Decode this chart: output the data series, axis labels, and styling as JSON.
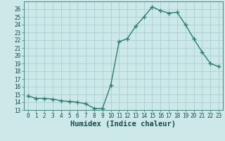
{
  "x": [
    0,
    1,
    2,
    3,
    4,
    5,
    6,
    7,
    8,
    9,
    10,
    11,
    12,
    13,
    14,
    15,
    16,
    17,
    18,
    19,
    20,
    21,
    22,
    23
  ],
  "y": [
    14.8,
    14.5,
    14.5,
    14.4,
    14.2,
    14.1,
    14.0,
    13.8,
    13.2,
    13.2,
    16.2,
    21.8,
    22.2,
    23.8,
    25.0,
    26.3,
    25.8,
    25.5,
    25.6,
    24.0,
    22.2,
    20.5,
    19.0,
    18.6
  ],
  "xlabel": "Humidex (Indice chaleur)",
  "xlim": [
    -0.5,
    23.5
  ],
  "ylim": [
    13,
    27
  ],
  "yticks": [
    13,
    14,
    15,
    16,
    17,
    18,
    19,
    20,
    21,
    22,
    23,
    24,
    25,
    26
  ],
  "xticks": [
    0,
    1,
    2,
    3,
    4,
    5,
    6,
    7,
    8,
    9,
    10,
    11,
    12,
    13,
    14,
    15,
    16,
    17,
    18,
    19,
    20,
    21,
    22,
    23
  ],
  "line_color": "#2e7d6e",
  "marker": "+",
  "bg_color": "#cce8e8",
  "grid_color": "#aacfcf",
  "tick_label_fontsize": 5.5,
  "xlabel_fontsize": 7.5,
  "line_width": 1.0,
  "marker_size": 4
}
